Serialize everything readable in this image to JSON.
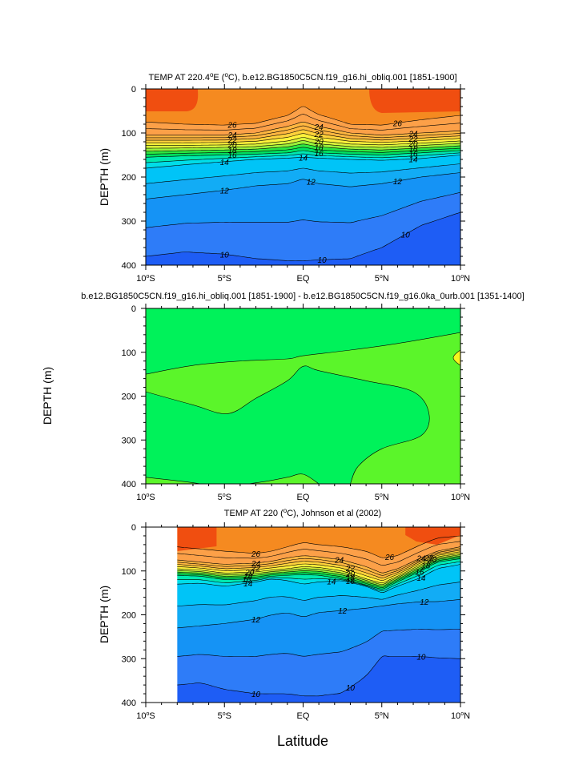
{
  "figure": {
    "xlabel": "Latitude"
  },
  "chart_data": [
    {
      "type": "heatmap",
      "title": "TEMP AT 220.4°E (°C), b.e12.BG1850C5CN.f19_g16.hi_obliq.001 [1851-1900]",
      "title_parts": {
        "pre": "TEMP AT 220.4",
        "sup": "o",
        "post": "E (",
        "sup2": "o",
        "post2": "C), b.e12.BG1850C5CN.f19_g16.hi_obliq.001 [1851-1900]"
      },
      "ylabel": "DEPTH (m)",
      "xlim": [
        -10,
        10
      ],
      "ylim": [
        0,
        400
      ],
      "y_inverted": true,
      "x_ticks": [
        {
          "v": -10,
          "label": "10",
          "sup": "o",
          "suffix": "S"
        },
        {
          "v": -5,
          "label": "5",
          "sup": "o",
          "suffix": "S"
        },
        {
          "v": 0,
          "label": "EQ",
          "sup": "",
          "suffix": ""
        },
        {
          "v": 5,
          "label": "5",
          "sup": "o",
          "suffix": "N"
        },
        {
          "v": 10,
          "label": "10",
          "sup": "o",
          "suffix": "N"
        }
      ],
      "y_ticks": [
        {
          "v": 0,
          "label": "0"
        },
        {
          "v": 100,
          "label": "100"
        },
        {
          "v": 200,
          "label": "200"
        },
        {
          "v": 300,
          "label": "300"
        },
        {
          "v": 400,
          "label": "400"
        }
      ],
      "x": [
        -10,
        -7.5,
        -5,
        -3,
        -1,
        0,
        1,
        3,
        5,
        7.5,
        10
      ],
      "isotherm_depths": {
        "t26": [
          75,
          80,
          82,
          78,
          60,
          40,
          58,
          80,
          82,
          70,
          60
        ],
        "t24": [
          105,
          105,
          105,
          100,
          85,
          75,
          85,
          100,
          105,
          100,
          95
        ],
        "t20": [
          128,
          128,
          127,
          125,
          118,
          110,
          118,
          125,
          127,
          123,
          118
        ],
        "t16": [
          155,
          152,
          150,
          148,
          145,
          140,
          145,
          148,
          150,
          145,
          140
        ],
        "t14": [
          180,
          172,
          165,
          160,
          157,
          155,
          157,
          160,
          162,
          158,
          150
        ],
        "t12": [
          250,
          240,
          230,
          220,
          215,
          205,
          215,
          222,
          215,
          200,
          190
        ],
        "t10": [
          380,
          370,
          375,
          385,
          390,
          390,
          388,
          385,
          360,
          310,
          280
        ]
      },
      "contour_labels": [
        "26",
        "24",
        "22",
        "20",
        "18",
        "16",
        "14",
        "12",
        "10"
      ]
    },
    {
      "type": "heatmap",
      "title": "b.e12.BG1850C5CN.f19_g16.hi_obliq.001 [1851-1900] - b.e12.BG1850C5CN.f19_g16.0ka_0urb.001 [1351-1400]",
      "ylabel": "DEPTH (m)",
      "xlim": [
        -10,
        10
      ],
      "ylim": [
        0,
        400
      ],
      "y_inverted": true,
      "x_ticks": [
        {
          "v": -10,
          "label": "10",
          "sup": "o",
          "suffix": "S"
        },
        {
          "v": -5,
          "label": "5",
          "sup": "o",
          "suffix": "S"
        },
        {
          "v": 0,
          "label": "EQ",
          "sup": "",
          "suffix": ""
        },
        {
          "v": 5,
          "label": "5",
          "sup": "o",
          "suffix": "N"
        },
        {
          "v": 10,
          "label": "10",
          "sup": "o",
          "suffix": "N"
        }
      ],
      "y_ticks": [
        {
          "v": 0,
          "label": "0"
        },
        {
          "v": 100,
          "label": "100"
        },
        {
          "v": 200,
          "label": "200"
        },
        {
          "v": 300,
          "label": "300"
        },
        {
          "v": 400,
          "label": "400"
        }
      ],
      "upper_boundary": {
        "x": [
          -10,
          -7,
          -4,
          -1,
          0,
          3,
          6,
          10
        ],
        "depth": [
          150,
          130,
          120,
          115,
          108,
          95,
          80,
          55
        ]
      },
      "region_boundary": {
        "x": [
          -10,
          -7,
          -4.8,
          -3,
          -1,
          0,
          1,
          4,
          7,
          8,
          7.5,
          5,
          3.5,
          3
        ],
        "depth": [
          190,
          220,
          240,
          205,
          165,
          132,
          142,
          165,
          190,
          240,
          290,
          320,
          360,
          400
        ]
      },
      "bottom_boundary": {
        "x": [
          -10,
          -7.5,
          -5,
          -2.5,
          -1,
          0,
          1
        ],
        "depth": [
          385,
          395,
          405,
          395,
          385,
          378,
          400
        ]
      },
      "warm_patch": {
        "x": 10,
        "depth_top": 95,
        "depth_bottom": 130
      }
    },
    {
      "type": "heatmap",
      "title": "TEMP AT 220 (°C), Johnson et al (2002)",
      "title_parts": {
        "pre": "TEMP AT 220 (",
        "sup": "o",
        "post": "C), Johnson et al (2002)"
      },
      "ylabel": "DEPTH (m)",
      "xlim": [
        -10,
        10
      ],
      "ylim": [
        0,
        400
      ],
      "y_inverted": true,
      "data_x_start": -8,
      "x_ticks": [
        {
          "v": -10,
          "label": "10",
          "sup": "o",
          "suffix": "S"
        },
        {
          "v": -5,
          "label": "5",
          "sup": "o",
          "suffix": "S"
        },
        {
          "v": 0,
          "label": "EQ",
          "sup": "",
          "suffix": ""
        },
        {
          "v": 5,
          "label": "5",
          "sup": "o",
          "suffix": "N"
        },
        {
          "v": 10,
          "label": "10",
          "sup": "o",
          "suffix": "N"
        }
      ],
      "y_ticks": [
        {
          "v": 0,
          "label": "0"
        },
        {
          "v": 100,
          "label": "100"
        },
        {
          "v": 200,
          "label": "200"
        },
        {
          "v": 300,
          "label": "300"
        },
        {
          "v": 400,
          "label": "400"
        }
      ],
      "x": [
        -8,
        -6.5,
        -5,
        -3,
        -2,
        -1,
        0,
        1,
        2.5,
        4,
        5,
        6,
        7.5,
        8.5,
        10
      ],
      "isotherm_depths": {
        "t26": [
          45,
          50,
          55,
          60,
          55,
          45,
          35,
          40,
          45,
          55,
          70,
          65,
          40,
          25,
          20
        ],
        "t24": [
          75,
          80,
          85,
          82,
          78,
          70,
          65,
          68,
          75,
          90,
          105,
          95,
          70,
          55,
          45
        ],
        "t20": [
          95,
          98,
          105,
          102,
          98,
          95,
          90,
          92,
          100,
          118,
          128,
          112,
          85,
          68,
          60
        ],
        "t16": [
          110,
          112,
          120,
          118,
          112,
          110,
          108,
          110,
          118,
          132,
          142,
          125,
          100,
          80,
          72
        ],
        "t14": [
          130,
          128,
          135,
          125,
          118,
          122,
          130,
          125,
          122,
          135,
          150,
          135,
          115,
          95,
          85
        ],
        "t12": [
          230,
          225,
          220,
          210,
          200,
          195,
          205,
          195,
          190,
          185,
          180,
          175,
          170,
          170,
          165
        ],
        "t10": [
          360,
          355,
          370,
          380,
          380,
          380,
          385,
          385,
          378,
          340,
          295,
          295,
          295,
          298,
          300
        ]
      },
      "contour_labels": [
        "26",
        "24",
        "22",
        "20",
        "18",
        "16",
        "14",
        "12",
        "10"
      ]
    }
  ]
}
